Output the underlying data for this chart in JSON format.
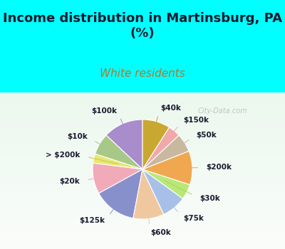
{
  "title": "Income distribution in Martinsburg, PA\n(%)",
  "subtitle": "White residents",
  "title_color": "#1a1a2e",
  "subtitle_color": "#b07830",
  "bg_cyan": "#00ffff",
  "bg_chart_colors": [
    "#e8f5f0",
    "#d0ede0",
    "#c8f0e8"
  ],
  "labels": [
    "$100k",
    "$10k",
    "> $200k",
    "$20k",
    "$125k",
    "$60k",
    "$75k",
    "$30k",
    "$200k",
    "$50k",
    "$150k",
    "$40k"
  ],
  "values": [
    13,
    7,
    3,
    10,
    14,
    10,
    8,
    5,
    11,
    6,
    4,
    9
  ],
  "colors": [
    "#a98ccc",
    "#a8c888",
    "#e8e870",
    "#f0aab8",
    "#8890cc",
    "#f0c8a0",
    "#a8c0e8",
    "#b8e878",
    "#f0a850",
    "#c8b8a0",
    "#f0a8a8",
    "#c8a830"
  ],
  "label_colors": [
    "#a98ccc",
    "#a8c888",
    "#c8c850",
    "#f0aab8",
    "#8890cc",
    "#f0c8a0",
    "#a8c0e8",
    "#a8d858",
    "#f0a850",
    "#c8b8a0",
    "#f0a8a8",
    "#c8a830"
  ],
  "watermark": "City-Data.com",
  "title_fontsize": 13,
  "subtitle_fontsize": 11,
  "label_fontsize": 7.5
}
